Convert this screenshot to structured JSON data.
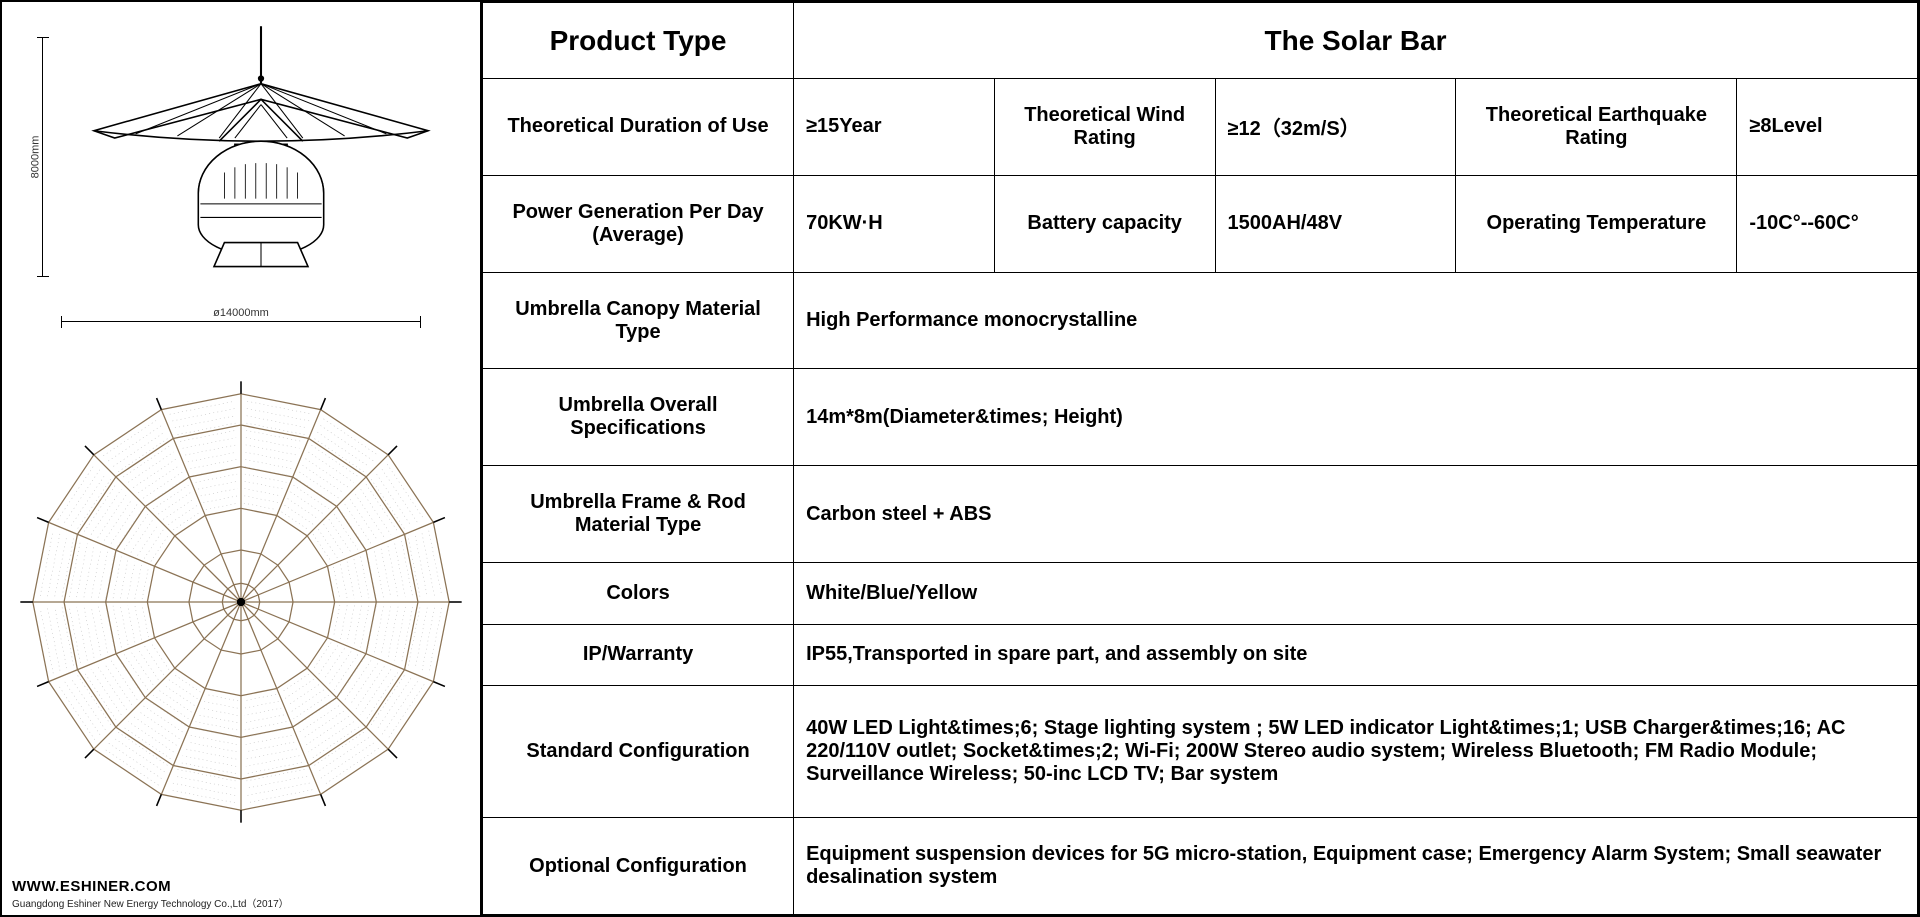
{
  "product": {
    "type_label": "Product Type",
    "name": "The Solar Bar"
  },
  "dimensions": {
    "height_label": "8000mm",
    "diameter_label": "ø14000mm"
  },
  "rows": {
    "r1": {
      "l1": "Theoretical Duration of Use",
      "v1": "≥15Year",
      "l2": "Theoretical Wind Rating",
      "v2": "≥12（32m/S）",
      "l3": "Theoretical Earthquake Rating",
      "v3": "≥8Level"
    },
    "r2": {
      "l1": "Power Generation Per Day (Average)",
      "v1": "70KW·H",
      "l2": "Battery capacity",
      "v2": "1500AH/48V",
      "l3": "Operating Temperature",
      "v3": "-10C°--60C°"
    },
    "r3": {
      "label": "Umbrella Canopy Material Type",
      "value": "High Performance monocrystalline"
    },
    "r4": {
      "label": "Umbrella Overall Specifications",
      "value": "14m*8m(Diameter&times; Height)"
    },
    "r5": {
      "label": "Umbrella Frame & Rod Material Type",
      "value": "Carbon steel + ABS"
    },
    "r6": {
      "label": "Colors",
      "value": "White/Blue/Yellow"
    },
    "r7": {
      "label": "IP/Warranty",
      "value": "IP55,Transported in spare part, and assembly on site"
    },
    "r8": {
      "label": "Standard Configuration",
      "value": "40W LED Light&times;6; Stage lighting system ; 5W LED indicator Light&times;1; USB Charger&times;16; AC 220/110V outlet; Socket&times;2; Wi-Fi; 200W Stereo audio system; Wireless Bluetooth; FM Radio Module; Surveillance Wireless; 50-inc LCD TV; Bar system"
    },
    "r9": {
      "label": "Optional Configuration",
      "value": "Equipment suspension devices for 5G micro-station, Equipment case; Emergency Alarm System; Small seawater desalination system"
    }
  },
  "footer": {
    "url": "WWW.ESHINER.COM",
    "company": "Guangdong Eshiner New Energy Technology Co.,Ltd（2017）"
  },
  "diagram": {
    "segments": 16,
    "stroke": "#000000",
    "accent": "#8b7355",
    "fill": "#ffffff"
  }
}
